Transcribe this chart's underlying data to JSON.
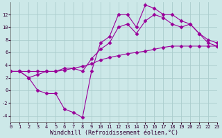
{
  "xlabel": "Windchill (Refroidissement éolien,°C)",
  "bg_color": "#cce8e8",
  "line_color": "#990099",
  "grid_color": "#aacccc",
  "line1_x": [
    0,
    1,
    2,
    3,
    4,
    5,
    6,
    7,
    8,
    9,
    10,
    11,
    12,
    13,
    14,
    15,
    16,
    17,
    18,
    19,
    20,
    21,
    22,
    23
  ],
  "line1_y": [
    3,
    3,
    2,
    0,
    -0.5,
    -0.5,
    -3,
    -3.5,
    -4.3,
    3,
    7.5,
    8.5,
    12,
    12,
    10,
    13.5,
    13,
    12,
    12,
    11,
    10.5,
    9,
    7.5,
    7
  ],
  "line2_x": [
    0,
    1,
    2,
    3,
    4,
    5,
    6,
    7,
    8,
    9,
    10,
    11,
    12,
    13,
    14,
    15,
    16,
    17,
    18,
    19,
    20,
    21,
    22,
    23
  ],
  "line2_y": [
    3,
    3,
    3,
    3,
    3,
    3,
    3.2,
    3.5,
    3.8,
    4.2,
    4.8,
    5.2,
    5.5,
    5.8,
    6,
    6.2,
    6.5,
    6.8,
    7,
    7,
    7,
    7,
    7,
    7
  ],
  "line3_x": [
    0,
    1,
    2,
    3,
    4,
    5,
    6,
    7,
    8,
    9,
    10,
    11,
    12,
    13,
    14,
    15,
    16,
    17,
    18,
    19,
    20,
    21,
    22,
    23
  ],
  "line3_y": [
    3,
    3,
    2,
    2.5,
    3,
    3,
    3.5,
    3.5,
    3,
    5,
    6.5,
    7.5,
    10,
    10.5,
    9,
    11,
    12,
    11.5,
    10.5,
    10,
    10.5,
    9,
    8,
    7.5
  ],
  "xlim": [
    0,
    23
  ],
  "ylim": [
    -5,
    14
  ],
  "xticks": [
    0,
    1,
    2,
    3,
    4,
    5,
    6,
    7,
    8,
    9,
    10,
    11,
    12,
    13,
    14,
    15,
    16,
    17,
    18,
    19,
    20,
    21,
    22,
    23
  ],
  "yticks": [
    -4,
    -2,
    0,
    2,
    4,
    6,
    8,
    10,
    12
  ],
  "tick_fontsize": 5,
  "xlabel_fontsize": 6
}
